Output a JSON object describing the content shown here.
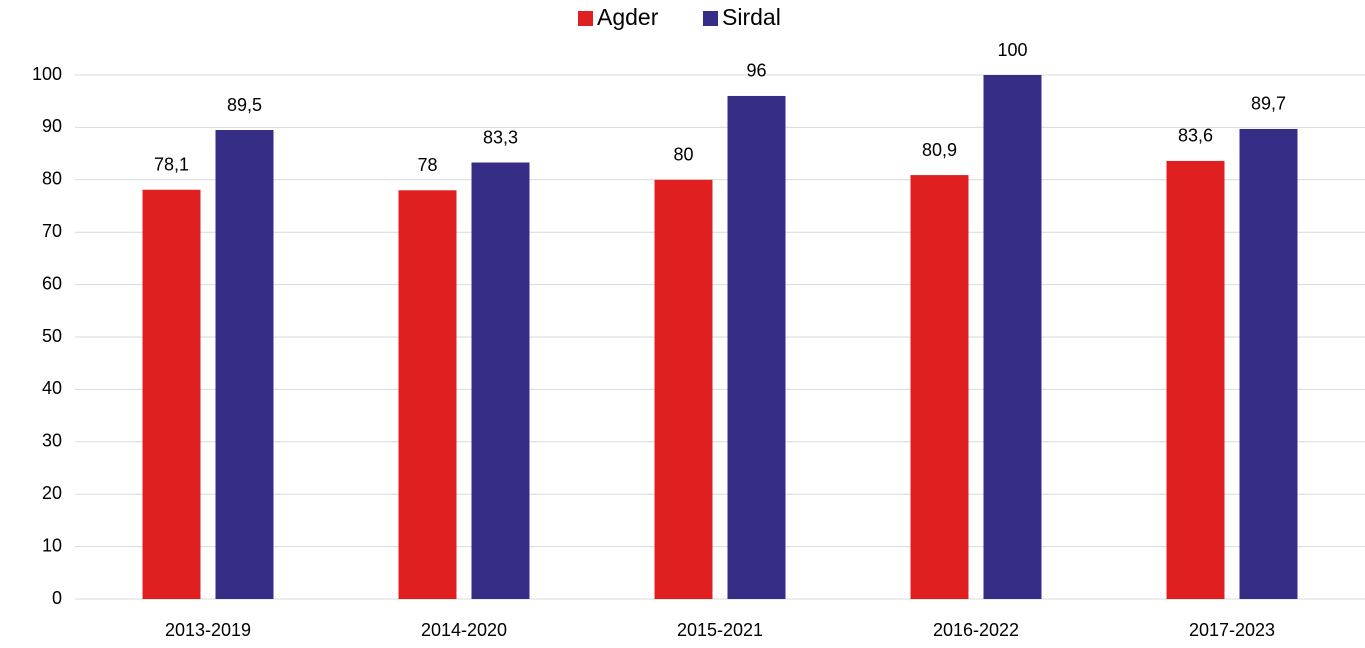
{
  "chart_data": {
    "type": "bar",
    "categories": [
      "2013-2019",
      "2014-2020",
      "2015-2021",
      "2016-2022",
      "2017-2023"
    ],
    "series": [
      {
        "name": "Agder",
        "color": "#e02020",
        "values": [
          78.1,
          78,
          80,
          80.9,
          83.6
        ],
        "value_labels": [
          "78,1",
          "78",
          "80",
          "80,9",
          "83,6"
        ]
      },
      {
        "name": "Sirdal",
        "color": "#352d86",
        "values": [
          89.5,
          83.3,
          96,
          100,
          89.7
        ],
        "value_labels": [
          "89,5",
          "83,3",
          "96",
          "100",
          "89,7"
        ]
      }
    ],
    "ylim": [
      0,
      100
    ],
    "yticks": [
      0,
      10,
      20,
      30,
      40,
      50,
      60,
      70,
      80,
      90,
      100
    ],
    "grid": true,
    "legend": "top"
  }
}
